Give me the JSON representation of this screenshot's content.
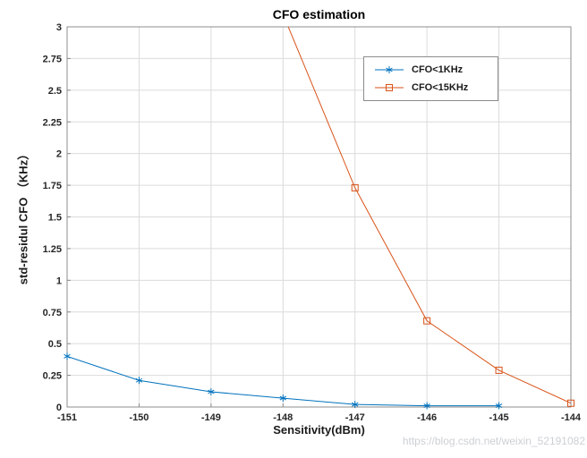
{
  "watermark": {
    "text": "https://blog.csdn.net/weixin_52191082"
  },
  "chart_data": {
    "type": "line",
    "title": "CFO estimation",
    "xlabel": "Sensitivity(dBm)",
    "ylabel": "std-residul CFO （KHz）",
    "xlim": [
      -151,
      -144
    ],
    "ylim": [
      0,
      3
    ],
    "xticks": [
      -151,
      -150,
      -149,
      -148,
      -147,
      -146,
      -145,
      -144
    ],
    "yticks": [
      0,
      0.25,
      0.5,
      0.75,
      1,
      1.25,
      1.5,
      1.75,
      2,
      2.25,
      2.5,
      2.75,
      3
    ],
    "grid": true,
    "legend_position": "inside-upper-right",
    "series": [
      {
        "name": "CFO<1KHz",
        "color": "#0072BD",
        "marker": "asterisk",
        "x": [
          -151,
          -150,
          -149,
          -148,
          -147,
          -146,
          -145
        ],
        "y": [
          0.4,
          0.21,
          0.12,
          0.07,
          0.02,
          0.01,
          0.01
        ]
      },
      {
        "name": "CFO<15KHz",
        "color": "#D95319",
        "marker": "square",
        "x": [
          -148,
          -147,
          -146,
          -145,
          -144
        ],
        "y": [
          3.1,
          1.73,
          0.68,
          0.29,
          0.03
        ]
      }
    ]
  }
}
